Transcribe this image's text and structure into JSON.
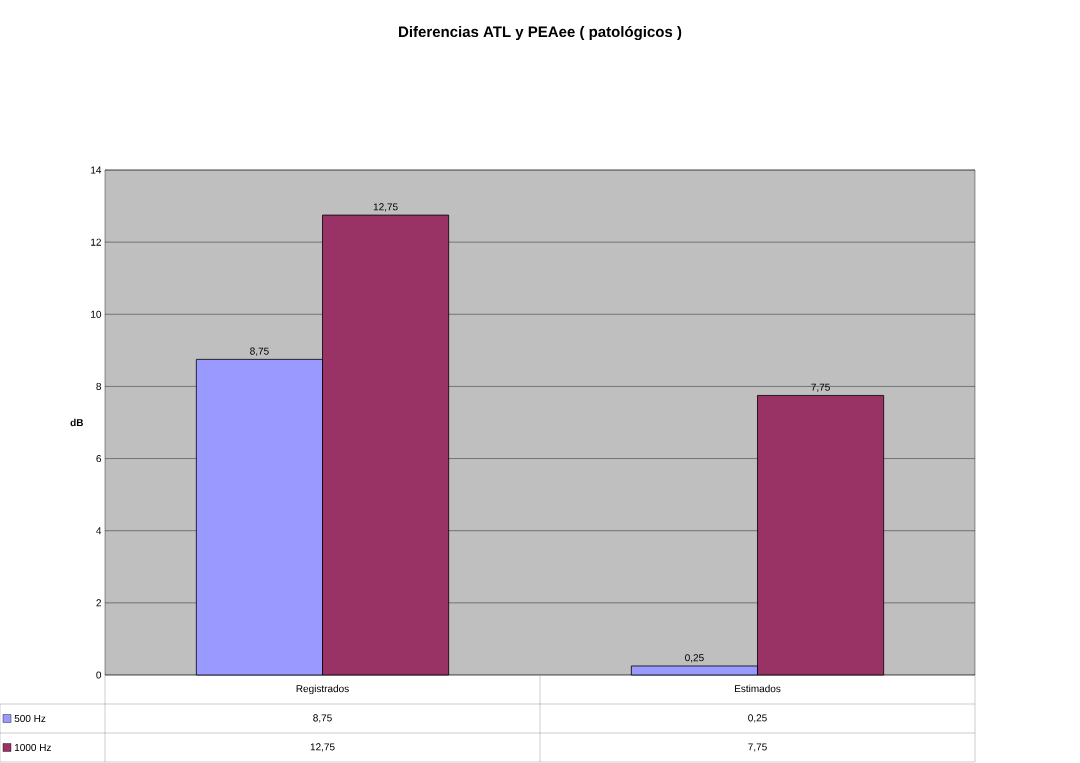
{
  "chart_data": {
    "type": "bar",
    "title": "Diferencias ATL y PEAee ( patológicos )",
    "ylabel": "dB",
    "categories": [
      "Registrados",
      "Estimados"
    ],
    "series": [
      {
        "name": "500 Hz",
        "color": "#9999ff",
        "values": [
          8.75,
          0.25
        ],
        "value_labels": [
          "8,75",
          "0,25"
        ]
      },
      {
        "name": "1000 Hz",
        "color": "#993366",
        "values": [
          12.75,
          7.75
        ],
        "value_labels": [
          "12,75",
          "7,75"
        ]
      }
    ],
    "ylim": [
      0,
      14
    ],
    "yticks": [
      0,
      2,
      4,
      6,
      8,
      10,
      12,
      14
    ],
    "grid": "y",
    "legend": "bottom left"
  }
}
